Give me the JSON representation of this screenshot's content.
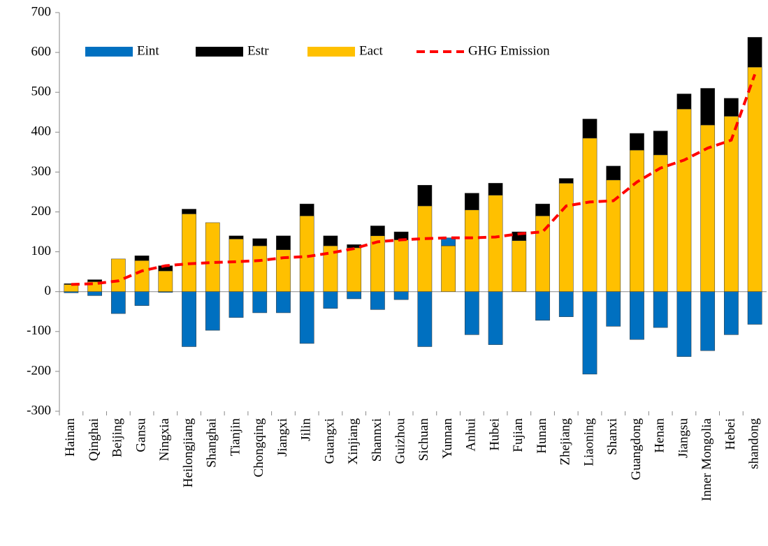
{
  "chart_data": {
    "type": "bar",
    "stacked": true,
    "categories": [
      "Hainan",
      "Qinghai",
      "Beijing",
      "Gansu",
      "Ningxia",
      "Heilongjiang",
      "Shanghai",
      "Tianjin",
      "Chongqing",
      "Jiangxi",
      "Jilin",
      "Guangxi",
      "Xinjiang",
      "Shannxi",
      "Guizhou",
      "Sichuan",
      "Yunnan",
      "Anhui",
      "Hubei",
      "Fujian",
      "Hunan",
      "Zhejiang",
      "Liaoning",
      "Shanxi",
      "Guangdong",
      "Henan",
      "Jiangsu",
      "Inner Mongolia",
      "Hebei",
      "shandong"
    ],
    "series": [
      {
        "name": "Eint",
        "type": "bar",
        "color": "#0070c0",
        "values": [
          -3,
          -10,
          -55,
          -35,
          -2,
          -138,
          -97,
          -65,
          -53,
          -53,
          -130,
          -42,
          -18,
          -45,
          -20,
          -138,
          20,
          -108,
          -133,
          0,
          -72,
          -63,
          -207,
          -87,
          -120,
          -90,
          -163,
          -148,
          -108,
          -82
        ]
      },
      {
        "name": "Estr",
        "type": "bar",
        "color": "#000000",
        "values": [
          2,
          5,
          0,
          12,
          13,
          12,
          0,
          8,
          18,
          35,
          30,
          25,
          8,
          25,
          20,
          52,
          0,
          42,
          30,
          22,
          30,
          12,
          48,
          35,
          42,
          60,
          38,
          92,
          45,
          75
        ]
      },
      {
        "name": "Eact",
        "type": "bar",
        "color": "#ffc000",
        "values": [
          18,
          25,
          82,
          78,
          52,
          195,
          173,
          132,
          115,
          105,
          190,
          115,
          110,
          140,
          130,
          215,
          115,
          205,
          242,
          128,
          190,
          272,
          385,
          280,
          355,
          343,
          458,
          418,
          440,
          563
        ]
      },
      {
        "name": "GHG Emission",
        "type": "line",
        "color": "#ff0000",
        "values": [
          18,
          20,
          27,
          52,
          65,
          70,
          73,
          75,
          78,
          85,
          88,
          97,
          108,
          125,
          130,
          133,
          135,
          135,
          137,
          145,
          150,
          215,
          225,
          228,
          275,
          310,
          330,
          360,
          380,
          545
        ]
      }
    ],
    "ylim": [
      -300,
      700
    ],
    "yticks": [
      -300,
      -200,
      -100,
      0,
      100,
      200,
      300,
      400,
      500,
      600,
      700
    ]
  }
}
